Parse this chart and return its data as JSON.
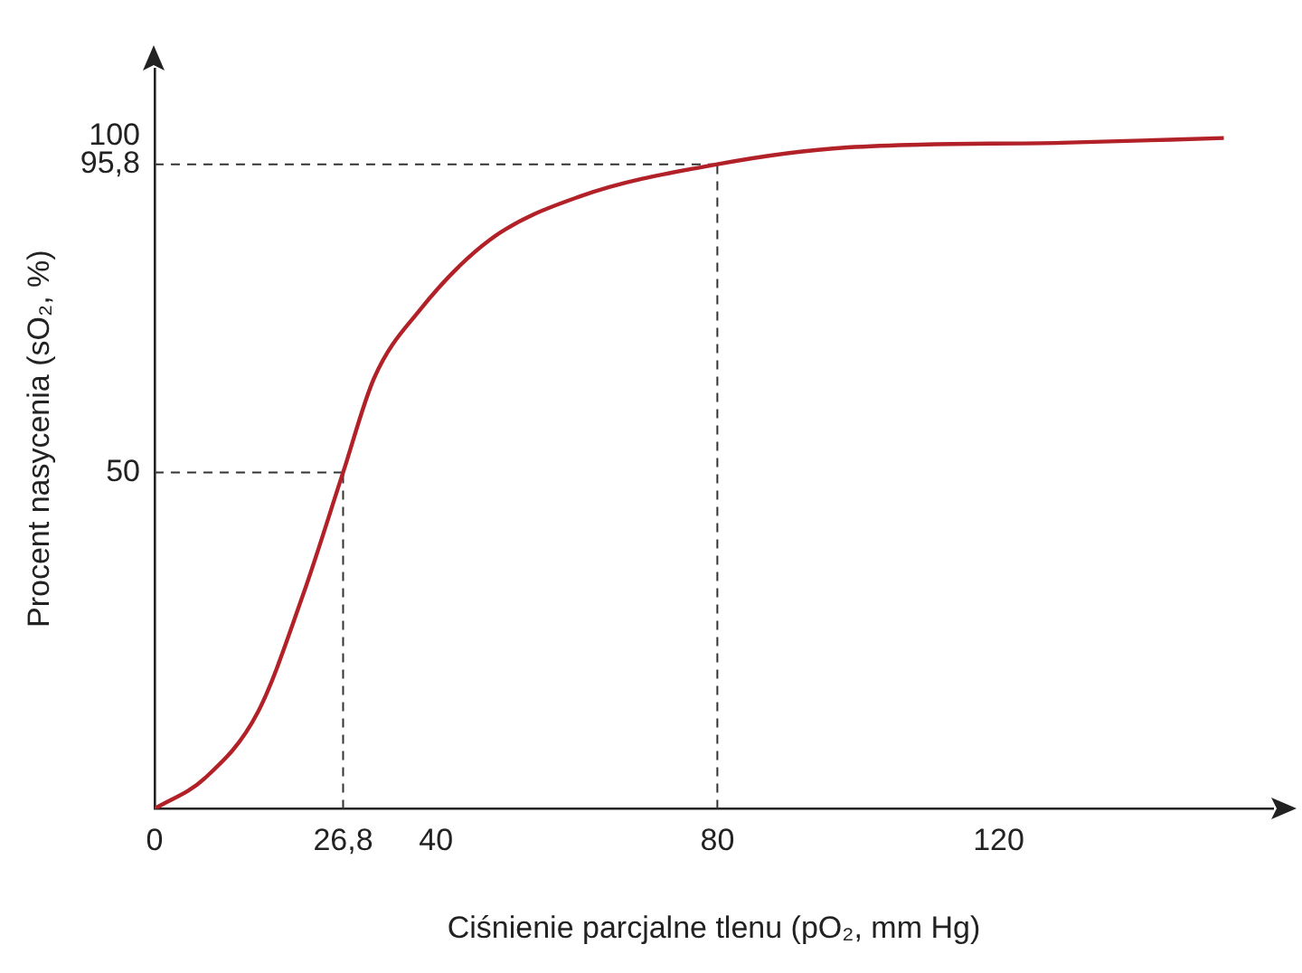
{
  "chart_data": {
    "type": "line",
    "xlabel": "Ciśnienie parcjalne tlenu (pO₂, mm Hg)",
    "ylabel": "Procent nasycenia (sO₂, %)",
    "xlim": [
      0,
      159
    ],
    "ylim": [
      0,
      110
    ],
    "xticks": [
      0,
      {
        "value": 26.8,
        "label": "26,8"
      },
      40,
      80,
      120
    ],
    "yticks": [
      50,
      {
        "value": 95.8,
        "label": "95,8"
      },
      100
    ],
    "marker": "none",
    "line_style": "solid",
    "series": [
      {
        "color": "#b22028",
        "x": [
          0,
          7.1,
          14.7,
          21.1,
          26.8,
          31.2,
          37.6,
          47.7,
          60.4,
          80,
          98.5,
          129,
          152
        ],
        "values": [
          0,
          4.5,
          14.4,
          31.8,
          50,
          64,
          74,
          84.6,
          91,
          95.8,
          98.3,
          99,
          99.7
        ]
      }
    ],
    "ref_lines": [
      {
        "axis": "x",
        "value": 26.8,
        "color": "#333333",
        "line_style": "dashed"
      },
      {
        "axis": "y",
        "value": 50,
        "color": "#333333",
        "line_style": "dashed"
      },
      {
        "axis": "x",
        "value": 80,
        "color": "#333333",
        "line_style": "dashed"
      },
      {
        "axis": "y",
        "value": 95.8,
        "color": "#333333",
        "line_style": "dashed"
      }
    ]
  }
}
